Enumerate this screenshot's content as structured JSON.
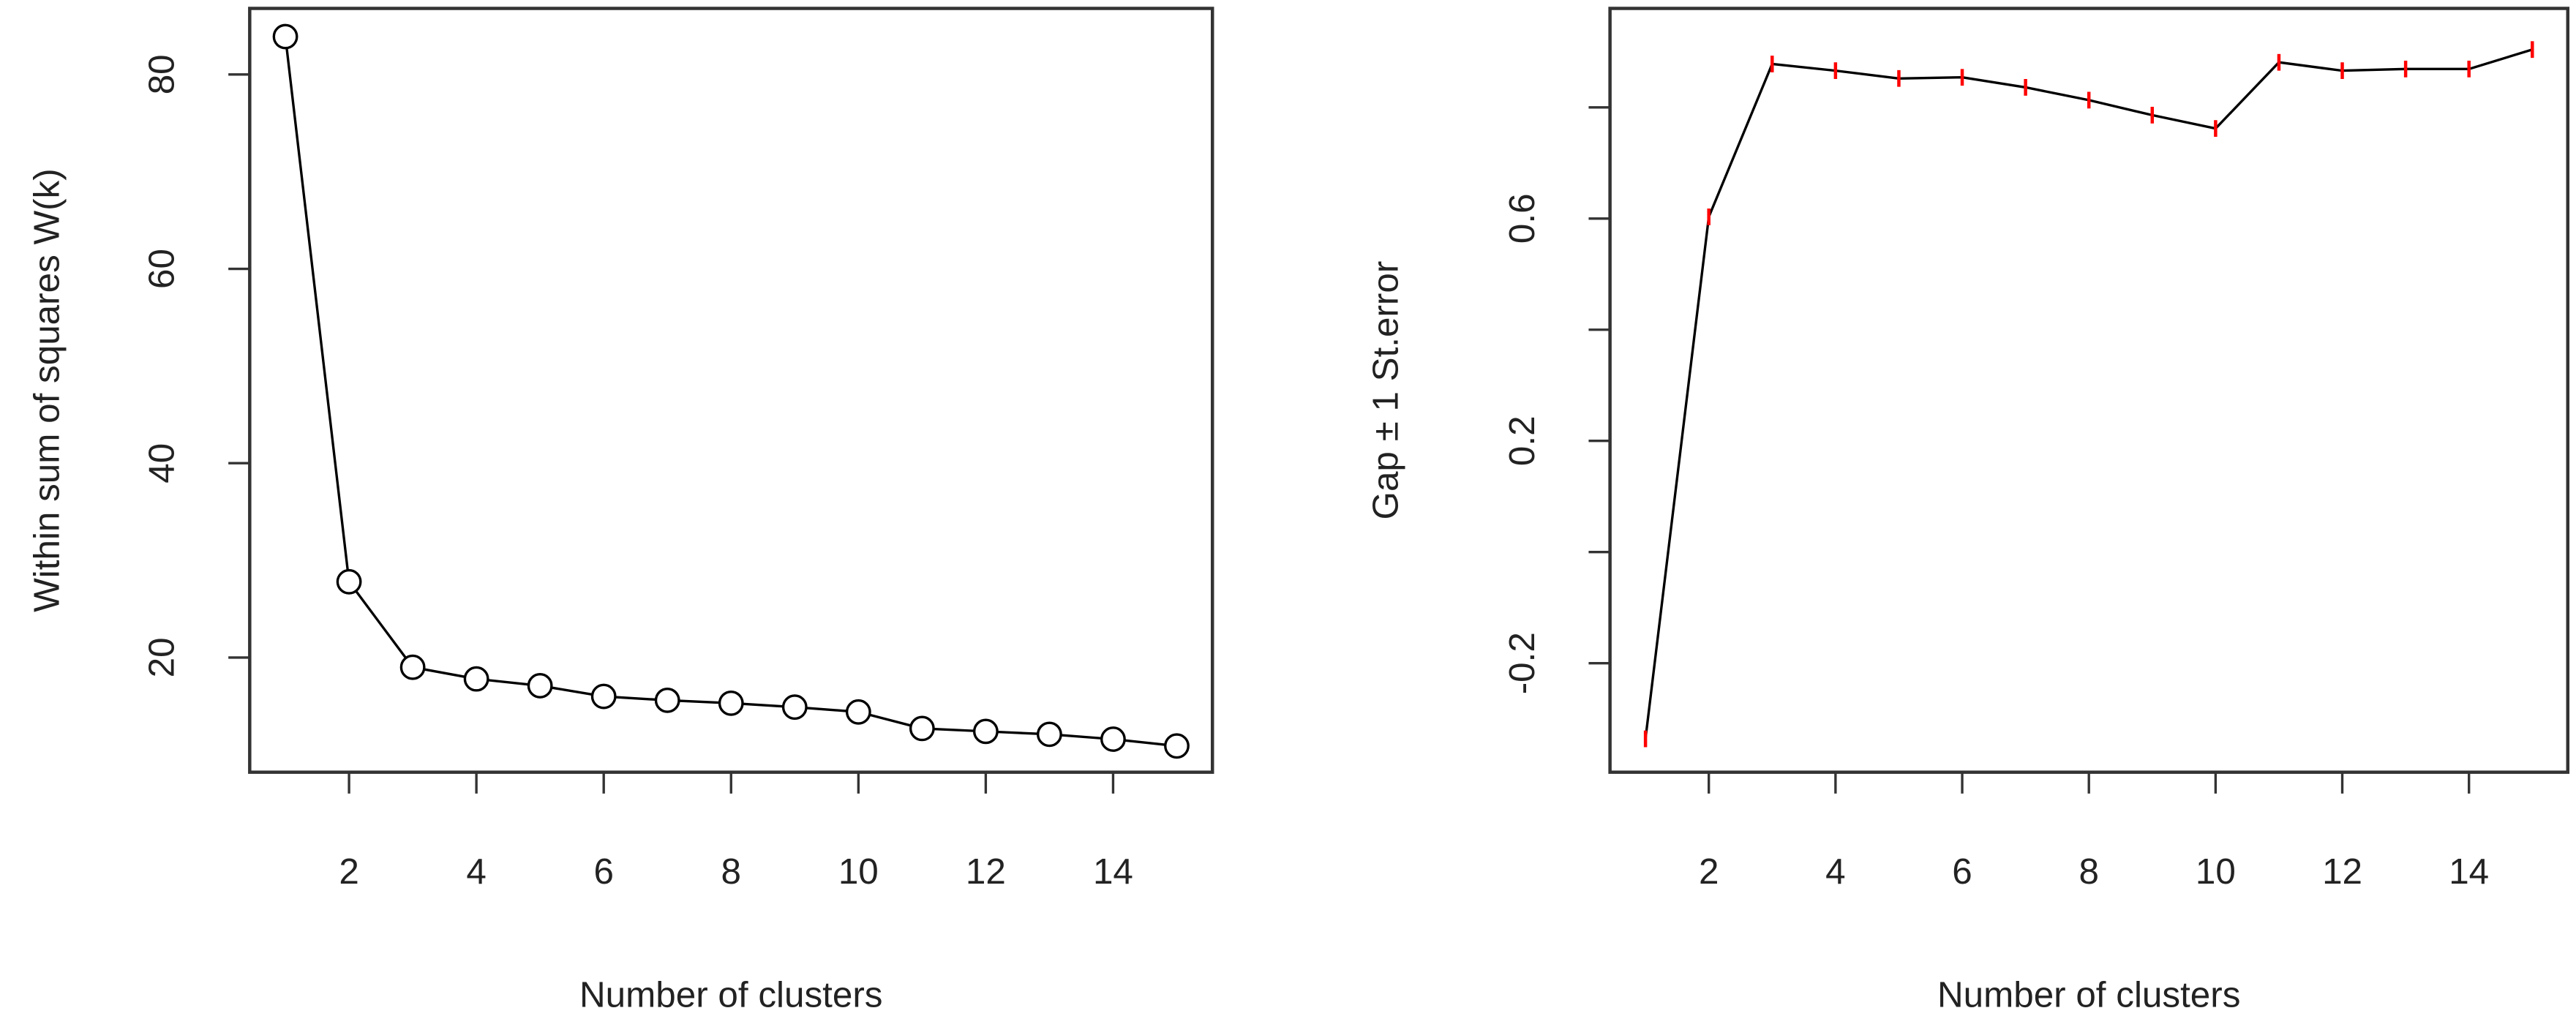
{
  "chart_data": [
    {
      "type": "line",
      "marker": "circle",
      "x": [
        1,
        2,
        3,
        4,
        5,
        6,
        7,
        8,
        9,
        10,
        11,
        12,
        13,
        14,
        15
      ],
      "series": [
        {
          "color": "#000000",
          "values": [
            83.9,
            27.8,
            19.0,
            17.8,
            17.1,
            16.0,
            15.6,
            15.3,
            14.9,
            14.4,
            12.7,
            12.4,
            12.1,
            11.6,
            10.9
          ]
        }
      ],
      "xlim": [
        0.44,
        15.56
      ],
      "xticks": [
        2,
        4,
        6,
        8,
        10,
        12,
        14
      ],
      "ylim": [
        8.2,
        86.8
      ],
      "yticks": [
        20,
        40,
        60,
        80
      ],
      "x_label": "Number of clusters",
      "y_label": "Within sum of squares W(k)"
    },
    {
      "type": "line",
      "marker": "errorbar",
      "x": [
        1,
        2,
        3,
        4,
        5,
        6,
        7,
        8,
        9,
        10,
        11,
        12,
        13,
        14,
        15
      ],
      "series": [
        {
          "color": "#000000",
          "error_color": "#ff0000",
          "values": [
            -0.336,
            0.603,
            0.878,
            0.866,
            0.852,
            0.854,
            0.836,
            0.813,
            0.786,
            0.762,
            0.881,
            0.866,
            0.869,
            0.869,
            0.904
          ],
          "errors": [
            0.015,
            0.015,
            0.015,
            0.015,
            0.015,
            0.015,
            0.015,
            0.015,
            0.015,
            0.015,
            0.015,
            0.015,
            0.015,
            0.015,
            0.015
          ]
        }
      ],
      "xlim": [
        0.44,
        15.56
      ],
      "xticks": [
        2,
        4,
        6,
        8,
        10,
        12,
        14
      ],
      "ylim": [
        -0.396,
        0.978
      ],
      "yticks": [
        -0.2,
        {
          "value": 0,
          "label": null
        },
        0.2,
        {
          "value": 0.4,
          "label": null
        },
        0.6,
        {
          "value": 0.8,
          "label": null
        }
      ],
      "x_label": "Number of clusters",
      "y_label": "Gap ± 1 St.error"
    }
  ]
}
